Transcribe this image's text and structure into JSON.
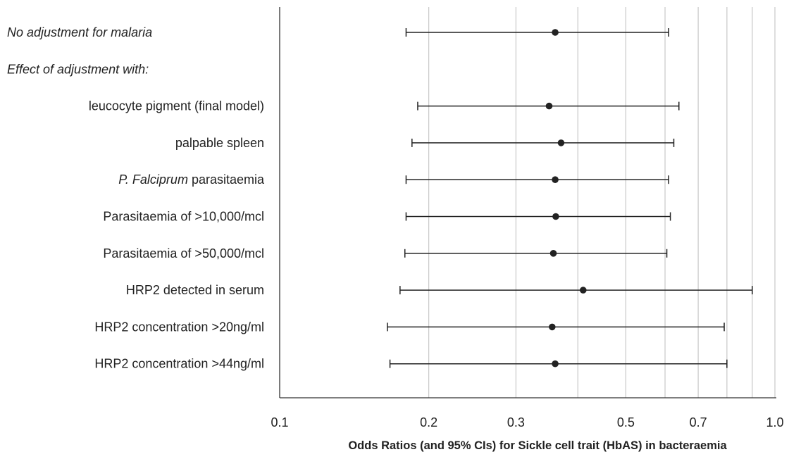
{
  "chart_data": {
    "type": "forest",
    "xscale": "log",
    "xlim": [
      0.1,
      1.0
    ],
    "xlabel": "Odds Ratios (and 95% CIs) for Sickle cell trait (HbAS) in bacteraemia",
    "ticks": [
      {
        "value": 0.1,
        "label": "0.1"
      },
      {
        "value": 0.2,
        "label": "0.2"
      },
      {
        "value": 0.3,
        "label": "0.3"
      },
      {
        "value": 0.5,
        "label": "0.5"
      },
      {
        "value": 0.7,
        "label": "0.7"
      },
      {
        "value": 1.0,
        "label": "1.0"
      }
    ],
    "gridlines": [
      0.2,
      0.3,
      0.4,
      0.5,
      0.6,
      0.7,
      0.8,
      0.9,
      1.0
    ],
    "colors": {
      "marker": "#222222",
      "grid": "#c8c8c8",
      "axis": "#333333"
    },
    "rows": [
      {
        "label": "No adjustment for malaria",
        "italic": true,
        "indent": false,
        "or": 0.36,
        "lo": 0.18,
        "hi": 0.61
      },
      {
        "label": "Effect of adjustment with:",
        "italic": true,
        "indent": false,
        "or": null,
        "lo": null,
        "hi": null
      },
      {
        "label_parts": [
          {
            "text": "leucocyte pigment (final model)",
            "italic": false
          }
        ],
        "indent": true,
        "or": 0.35,
        "lo": 0.19,
        "hi": 0.64
      },
      {
        "label_parts": [
          {
            "text": "palpable spleen",
            "italic": false
          }
        ],
        "indent": true,
        "or": 0.37,
        "lo": 0.185,
        "hi": 0.625
      },
      {
        "label_parts": [
          {
            "text": "P. Falciprum",
            "italic": true
          },
          {
            "text": " parasitaemia",
            "italic": false
          }
        ],
        "indent": true,
        "or": 0.36,
        "lo": 0.18,
        "hi": 0.61
      },
      {
        "label_parts": [
          {
            "text": "Parasitaemia of >10,000/mcl",
            "italic": false
          }
        ],
        "indent": true,
        "or": 0.361,
        "lo": 0.18,
        "hi": 0.615
      },
      {
        "label_parts": [
          {
            "text": "Parasitaemia of >50,000/mcl",
            "italic": false
          }
        ],
        "indent": true,
        "or": 0.357,
        "lo": 0.179,
        "hi": 0.605
      },
      {
        "label_parts": [
          {
            "text": "HRP2 detected in serum",
            "italic": false
          }
        ],
        "indent": true,
        "or": 0.41,
        "lo": 0.175,
        "hi": 0.9
      },
      {
        "label_parts": [
          {
            "text": "HRP2 concentration >20ng/ml",
            "italic": false
          }
        ],
        "indent": true,
        "or": 0.355,
        "lo": 0.165,
        "hi": 0.79
      },
      {
        "label_parts": [
          {
            "text": "HRP2 concentration >44ng/ml",
            "italic": false
          }
        ],
        "indent": true,
        "or": 0.36,
        "lo": 0.167,
        "hi": 0.8
      }
    ]
  }
}
